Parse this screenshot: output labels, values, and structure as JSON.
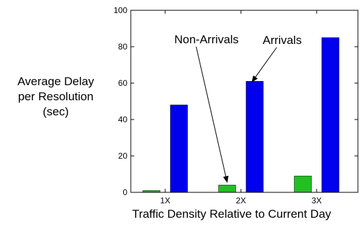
{
  "chart_data": {
    "type": "bar",
    "categories": [
      "1X",
      "2X",
      "3X"
    ],
    "series": [
      {
        "values": [
          1,
          4,
          9
        ],
        "color": "#22c022"
      },
      {
        "values": [
          48,
          61,
          85
        ],
        "color": "#0000ee"
      }
    ],
    "ylabel_lines": [
      "Average Delay",
      "per Resolution",
      "(sec)"
    ],
    "xlabel": "Traffic Density Relative to Current Day",
    "ylim": [
      0,
      100
    ],
    "yticks": [
      0,
      20,
      40,
      60,
      80,
      100
    ],
    "grid": false,
    "annotations": [
      {
        "text": "Non-Arrivals",
        "category": "2X",
        "series_index": 0
      },
      {
        "text": "Arrivals",
        "category": "2X",
        "series_index": 1
      }
    ]
  }
}
